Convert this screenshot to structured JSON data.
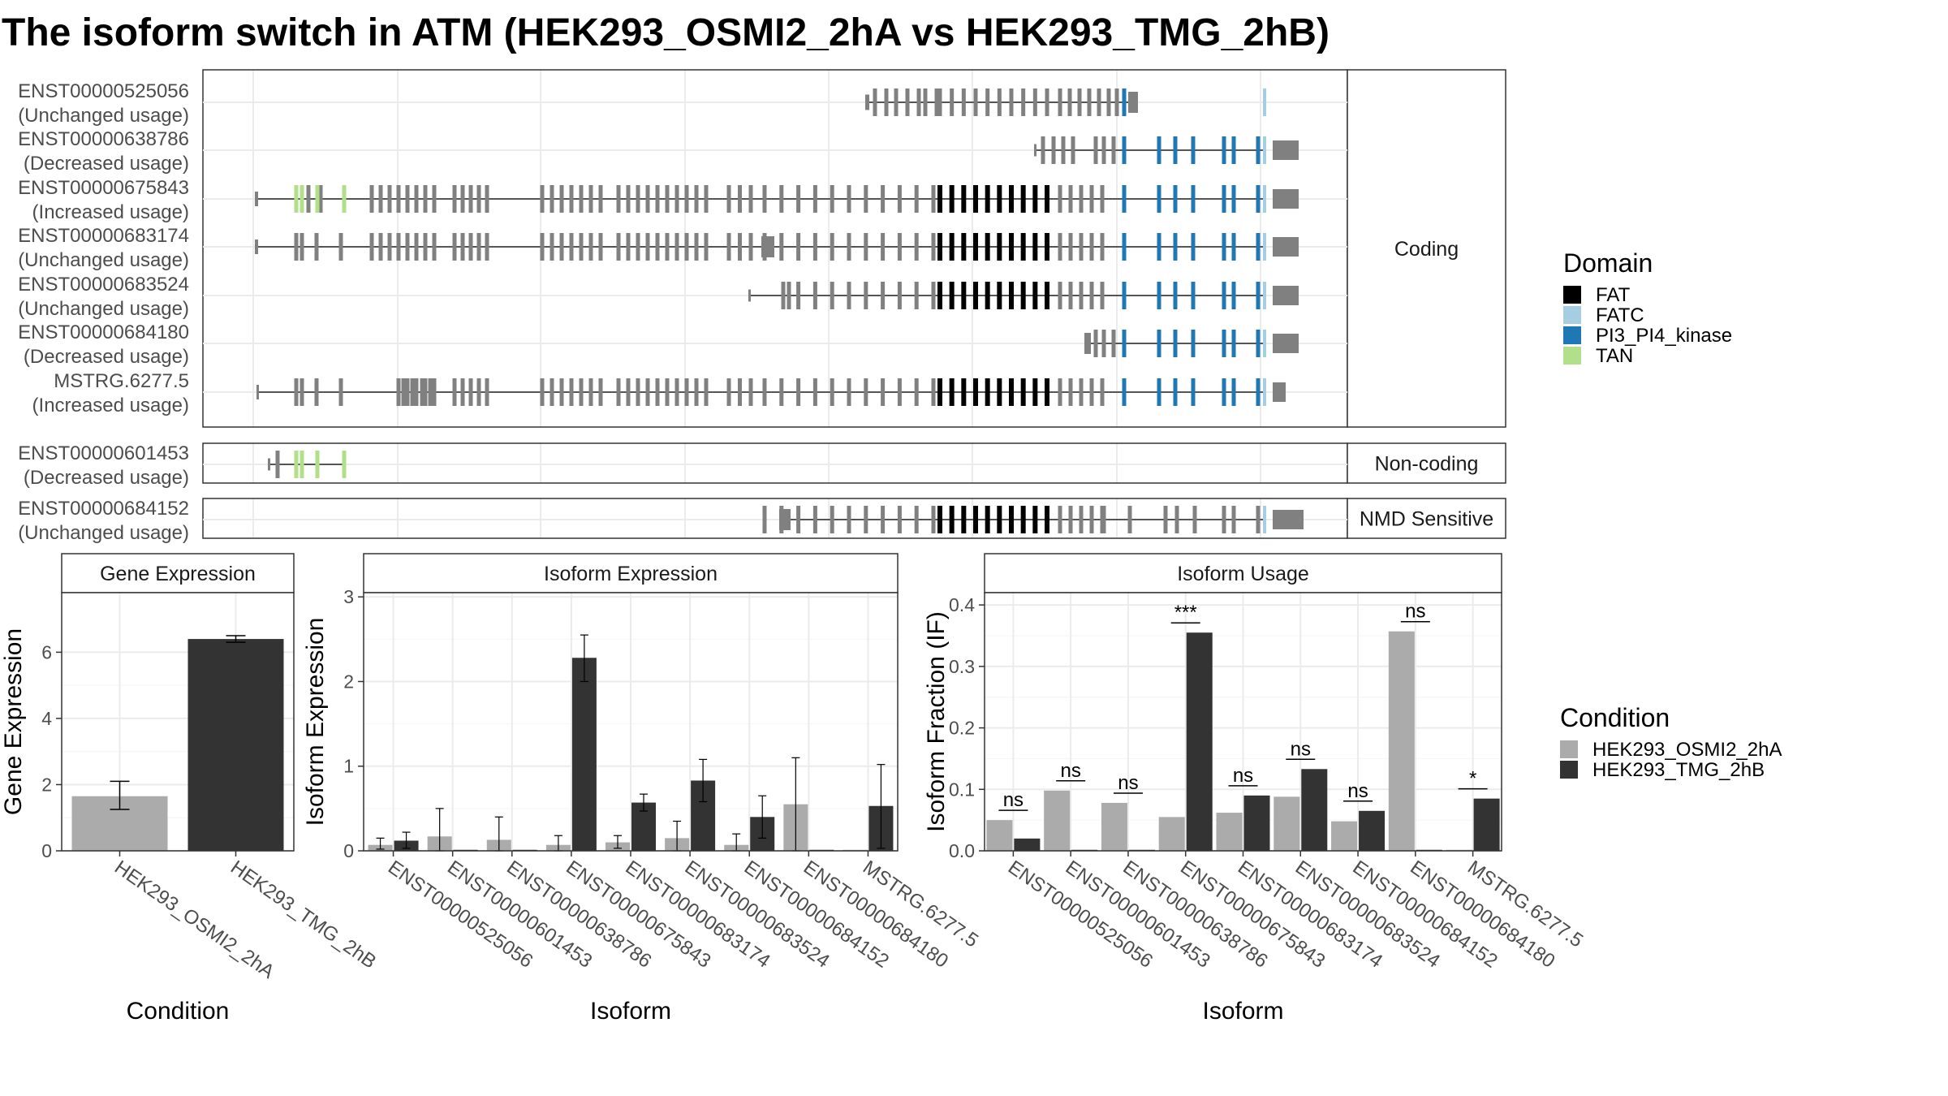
{
  "title": "The isoform switch in ATM (HEK293_OSMI2_2hA vs HEK293_TMG_2hB)",
  "colors": {
    "exon": "#808080",
    "FAT": "#000000",
    "FATC": "#a6cee3",
    "PI3_PI4_kinase": "#1f78b4",
    "TAN": "#b2df8a",
    "cond_a": "#ababab",
    "cond_b": "#333333",
    "strip_bg": "#ffffff",
    "grid": "#ebebeb"
  },
  "structure": {
    "groups": [
      {
        "label": "Coding",
        "transcripts": [
          {
            "id": "ENST00000525056",
            "status": "(Unchanged usage)"
          },
          {
            "id": "ENST00000638786",
            "status": "(Decreased usage)"
          },
          {
            "id": "ENST00000675843",
            "status": "(Increased usage)"
          },
          {
            "id": "ENST00000683174",
            "status": "(Unchanged usage)"
          },
          {
            "id": "ENST00000683524",
            "status": "(Unchanged usage)"
          },
          {
            "id": "ENST00000684180",
            "status": "(Decreased usage)"
          },
          {
            "id": "MSTRG.6277.5",
            "status": "(Increased usage)"
          }
        ]
      },
      {
        "label": "Non-coding",
        "transcripts": [
          {
            "id": "ENST00000601453",
            "status": "(Decreased usage)"
          }
        ]
      },
      {
        "label": "NMD Sensitive",
        "transcripts": [
          {
            "id": "ENST00000684152",
            "status": "(Unchanged usage)"
          }
        ]
      }
    ]
  },
  "legend_domain": {
    "title": "Domain",
    "items": [
      {
        "label": "FAT",
        "color": "#000000"
      },
      {
        "label": "FATC",
        "color": "#a6cee3"
      },
      {
        "label": "PI3_PI4_kinase",
        "color": "#1f78b4"
      },
      {
        "label": "TAN",
        "color": "#b2df8a"
      }
    ]
  },
  "legend_condition": {
    "title": "Condition",
    "items": [
      {
        "label": "HEK293_OSMI2_2hA",
        "color": "#ababab"
      },
      {
        "label": "HEK293_TMG_2hB",
        "color": "#333333"
      }
    ]
  },
  "chart_data": [
    {
      "type": "bar",
      "strip": "Gene Expression",
      "xlabel": "Condition",
      "ylabel": "Gene Expression",
      "ylim": [
        0,
        7.8
      ],
      "yticks": [
        0,
        2,
        4,
        6
      ],
      "categories": [
        "HEK293_OSMI2_2hA",
        "HEK293_TMG_2hB"
      ],
      "values": [
        1.65,
        6.4
      ],
      "errors": [
        [
          1.25,
          2.1
        ],
        [
          6.3,
          6.5
        ]
      ]
    },
    {
      "type": "bar",
      "strip": "Isoform Expression",
      "xlabel": "Isoform",
      "ylabel": "Isoform Expression",
      "ylim": [
        0,
        3.05
      ],
      "yticks": [
        0,
        1,
        2,
        3
      ],
      "categories": [
        "ENST00000525056",
        "ENST00000601453",
        "ENST00000638786",
        "ENST00000675843",
        "ENST00000683174",
        "ENST00000683524",
        "ENST00000684152",
        "ENST00000684180",
        "MSTRG.6277.5"
      ],
      "series": [
        {
          "name": "HEK293_OSMI2_2hA",
          "values": [
            0.07,
            0.17,
            0.13,
            0.07,
            0.1,
            0.15,
            0.07,
            0.55,
            0.0
          ],
          "errors": [
            [
              0.02,
              0.15
            ],
            [
              0,
              0.5
            ],
            [
              0,
              0.4
            ],
            [
              0,
              0.18
            ],
            [
              0.03,
              0.18
            ],
            [
              0,
              0.35
            ],
            [
              0,
              0.2
            ],
            [
              0,
              1.1
            ],
            [
              0,
              0
            ]
          ]
        },
        {
          "name": "HEK293_TMG_2hB",
          "values": [
            0.12,
            0.0,
            0.0,
            2.28,
            0.57,
            0.83,
            0.4,
            0.0,
            0.53
          ],
          "errors": [
            [
              0.03,
              0.22
            ],
            [
              0,
              0
            ],
            [
              0,
              0
            ],
            [
              2.0,
              2.55
            ],
            [
              0.47,
              0.67
            ],
            [
              0.58,
              1.08
            ],
            [
              0.15,
              0.65
            ],
            [
              0,
              0
            ],
            [
              0.03,
              1.02
            ]
          ]
        }
      ]
    },
    {
      "type": "bar",
      "strip": "Isoform Usage",
      "xlabel": "Isoform",
      "ylabel": "Isoform Fraction (IF)",
      "ylim": [
        0,
        0.42
      ],
      "yticks": [
        0.0,
        0.1,
        0.2,
        0.3,
        0.4
      ],
      "ytick_labels": [
        "0.0",
        "0.1",
        "0.2",
        "0.3",
        "0.4"
      ],
      "categories": [
        "ENST00000525056",
        "ENST00000601453",
        "ENST00000638786",
        "ENST00000675843",
        "ENST00000683174",
        "ENST00000683524",
        "ENST00000684152",
        "ENST00000684180",
        "MSTRG.6277.5"
      ],
      "series": [
        {
          "name": "HEK293_OSMI2_2hA",
          "values": [
            0.05,
            0.098,
            0.078,
            0.055,
            0.062,
            0.088,
            0.048,
            0.357,
            0.0
          ]
        },
        {
          "name": "HEK293_TMG_2hB",
          "values": [
            0.02,
            0.0,
            0.0,
            0.355,
            0.09,
            0.133,
            0.065,
            0.0,
            0.085
          ]
        }
      ],
      "significance": [
        "ns",
        "ns",
        "ns",
        "***",
        "ns",
        "ns",
        "ns",
        "ns",
        "*"
      ]
    }
  ]
}
